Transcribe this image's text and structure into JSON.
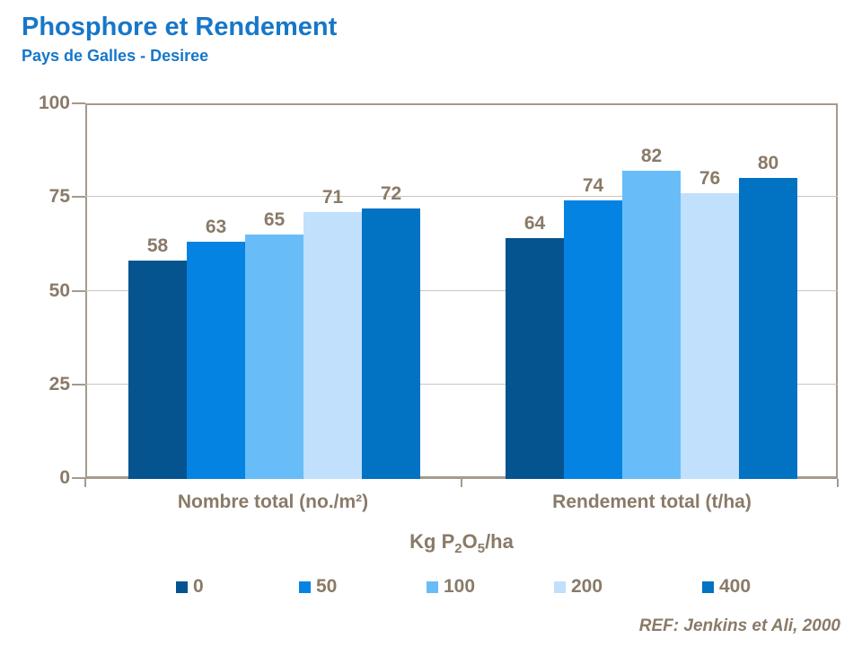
{
  "header": {
    "title": "Phosphore et Rendement",
    "subtitle": "Pays de Galles - Desiree"
  },
  "chart_data": {
    "type": "bar",
    "title": "Phosphore et Rendement",
    "subtitle": "Pays de Galles - Desiree",
    "categories": [
      "Nombre total (no./m²)",
      "Rendement total (t/ha)"
    ],
    "series": [
      {
        "name": "0",
        "color": "#05538F",
        "values": [
          58,
          64
        ]
      },
      {
        "name": "50",
        "color": "#0583E2",
        "values": [
          63,
          74
        ]
      },
      {
        "name": "100",
        "color": "#68BDF8",
        "values": [
          65,
          82
        ]
      },
      {
        "name": "200",
        "color": "#C0E0FB",
        "values": [
          71,
          76
        ]
      },
      {
        "name": "400",
        "color": "#0272C2",
        "values": [
          72,
          80
        ]
      }
    ],
    "ylim": [
      0,
      100
    ],
    "yticks": [
      0,
      25,
      50,
      75,
      100
    ],
    "grid": "horizontal",
    "data_labels": true,
    "legend_position": "bottom",
    "xlabel_parts": {
      "p1": "Kg P",
      "sub1": "2",
      "p2": "O",
      "sub2": "5",
      "p3": "/ha"
    }
  },
  "footer": {
    "reference": "REF: Jenkins et Ali, 2000"
  },
  "colors": {
    "title": "#1777C9",
    "text": "#8A7A68",
    "axis": "#A59A8C",
    "gridline": "#CCC4B8",
    "background": "#FFFFFF"
  }
}
